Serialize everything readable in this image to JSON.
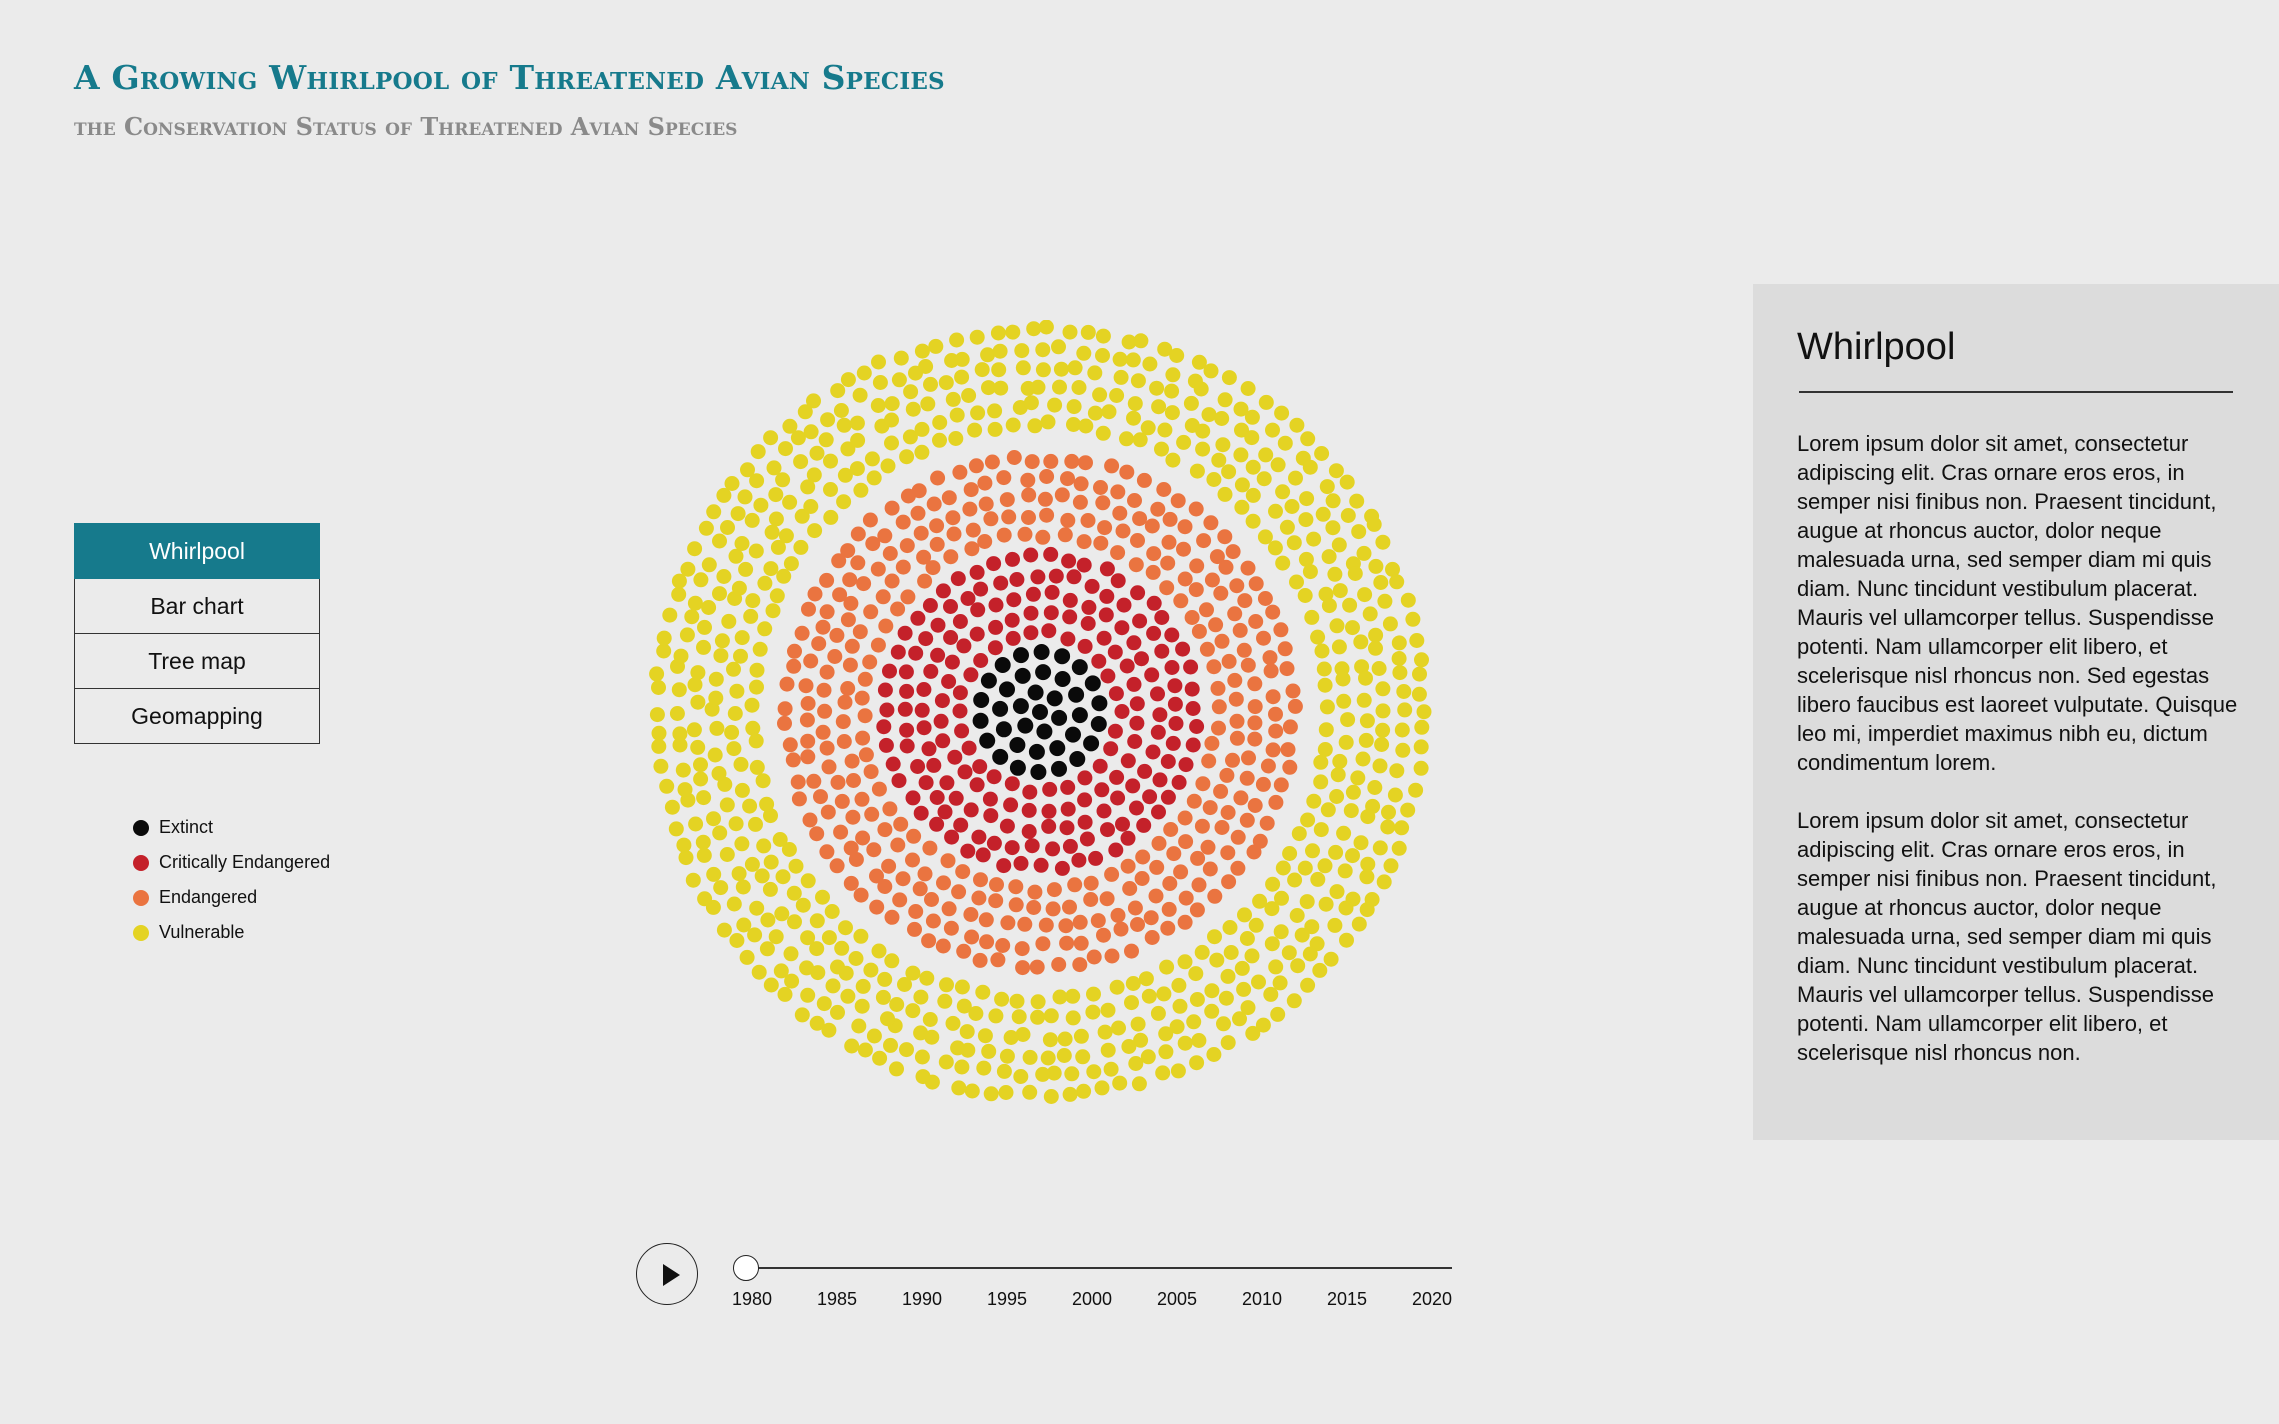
{
  "header": {
    "title": "A Growing Whirlpool of Threatened Avian Species",
    "subtitle": "the Conservation Status of Threatened Avian Species"
  },
  "nav": {
    "items": [
      {
        "label": "Whirlpool",
        "active": true
      },
      {
        "label": "Bar chart",
        "active": false
      },
      {
        "label": "Tree map",
        "active": false
      },
      {
        "label": "Geomapping",
        "active": false
      }
    ]
  },
  "legend": [
    {
      "label": "Extinct",
      "color": "#0a0a0a"
    },
    {
      "label": "Critically Endangered",
      "color": "#c4212a"
    },
    {
      "label": "Endangered",
      "color": "#ea7440"
    },
    {
      "label": "Vulnerable",
      "color": "#e4d323"
    }
  ],
  "timeline": {
    "play_icon": "play-icon",
    "current_year": 1980,
    "ticks": [
      "1980",
      "1985",
      "1990",
      "1995",
      "2000",
      "2005",
      "2010",
      "2015",
      "2020"
    ]
  },
  "panel": {
    "title": "Whirlpool",
    "paragraphs": [
      "Lorem ipsum dolor sit amet, consectetur adipiscing elit. Cras ornare eros eros, in semper nisi finibus non. Praesent tincidunt, augue at rhoncus auctor, dolor neque malesuada urna, sed semper diam mi quis diam. Nunc tincidunt vestibulum placerat. Mauris vel ullamcorper tellus. Suspendisse potenti. Nam ullamcorper elit libero, et scelerisque nisl rhoncus non. Sed egestas libero faucibus est laoreet vulputate. Quisque leo mi, imperdiet maximus nibh eu, dictum condimentum lorem.",
      "Lorem ipsum dolor sit amet, consectetur adipiscing elit. Cras ornare eros eros, in semper nisi finibus non. Praesent tincidunt, augue at rhoncus auctor, dolor neque malesuada urna, sed semper diam mi quis diam. Nunc tincidunt vestibulum placerat. Mauris vel ullamcorper tellus. Suspendisse potenti. Nam ullamcorper elit libero, et scelerisque nisl rhoncus non."
    ]
  },
  "chart_data": {
    "type": "scatter",
    "description_counts_by_status": [
      {
        "status": "Extinct",
        "count": 30
      },
      {
        "status": "Critically Endangered",
        "count": 170
      },
      {
        "status": "Endangered",
        "count": 380
      },
      {
        "status": "Vulnerable",
        "count": 560
      }
    ]
  }
}
